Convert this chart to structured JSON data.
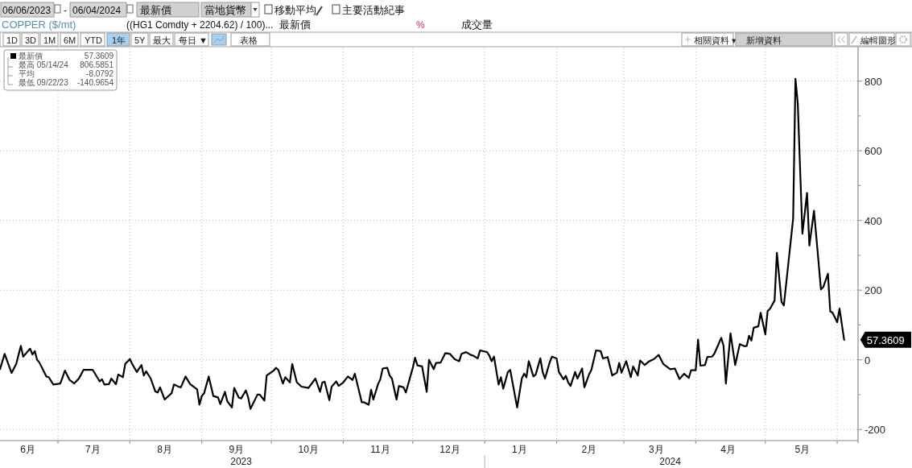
{
  "chart_data": {
    "type": "line",
    "title": "COPPER ($/mt)",
    "subtitle": "((HG1 Comdty + 2204.62) / 100)...",
    "x": [
      "2023-06-06",
      "2023-06-08",
      "2023-06-11",
      "2023-06-13",
      "2023-06-15",
      "2023-06-16",
      "2023-06-19",
      "2023-06-20",
      "2023-06-21",
      "2023-06-22",
      "2023-06-23",
      "2023-06-26",
      "2023-06-27",
      "2023-06-29",
      "2023-07-02",
      "2023-07-04",
      "2023-07-06",
      "2023-07-08",
      "2023-07-10",
      "2023-07-12",
      "2023-07-16",
      "2023-07-19",
      "2023-07-20",
      "2023-07-21",
      "2023-07-23",
      "2023-07-24",
      "2023-07-26",
      "2023-07-27",
      "2023-07-29",
      "2023-07-30",
      "2023-08-01",
      "2023-08-02",
      "2023-08-04",
      "2023-08-06",
      "2023-08-07",
      "2023-08-08",
      "2023-08-10",
      "2023-08-12",
      "2023-08-13",
      "2023-08-14",
      "2023-08-16",
      "2023-08-19",
      "2023-08-20",
      "2023-08-22",
      "2023-08-23",
      "2023-08-25",
      "2023-08-27",
      "2023-08-30",
      "2023-08-31",
      "2023-09-01",
      "2023-09-02",
      "2023-09-04",
      "2023-09-06",
      "2023-09-08",
      "2023-09-09",
      "2023-09-11",
      "2023-09-12",
      "2023-09-14",
      "2023-09-15",
      "2023-09-17",
      "2023-09-18",
      "2023-09-20",
      "2023-09-21",
      "2023-09-22",
      "2023-09-25",
      "2023-09-26",
      "2023-09-28",
      "2023-09-29",
      "2023-10-02",
      "2023-10-03",
      "2023-10-04",
      "2023-10-06",
      "2023-10-07",
      "2023-10-09",
      "2023-10-10",
      "2023-10-12",
      "2023-10-14",
      "2023-10-17",
      "2023-10-20",
      "2023-10-22",
      "2023-10-23",
      "2023-10-24",
      "2023-10-26",
      "2023-10-27",
      "2023-10-29",
      "2023-10-30",
      "2023-11-01",
      "2023-11-03",
      "2023-11-05",
      "2023-11-06",
      "2023-11-09",
      "2023-11-10",
      "2023-11-12",
      "2023-11-13",
      "2023-11-14",
      "2023-11-16",
      "2023-11-17",
      "2023-11-18",
      "2023-11-20",
      "2023-11-21",
      "2023-11-22",
      "2023-11-24",
      "2023-11-25",
      "2023-11-27",
      "2023-11-28",
      "2023-11-29",
      "2023-12-01",
      "2023-12-02",
      "2023-12-03",
      "2023-12-05",
      "2023-12-07",
      "2023-12-08",
      "2023-12-10",
      "2023-12-11",
      "2023-12-13",
      "2023-12-15",
      "2023-12-17",
      "2023-12-19",
      "2023-12-21",
      "2023-12-22",
      "2023-12-24",
      "2023-12-26",
      "2023-12-27",
      "2023-12-29",
      "2023-12-30",
      "2024-01-02",
      "2024-01-03",
      "2024-01-04",
      "2024-01-05",
      "2024-01-07",
      "2024-01-08",
      "2024-01-09",
      "2024-01-11",
      "2024-01-12",
      "2024-01-15",
      "2024-01-17",
      "2024-01-18",
      "2024-01-19",
      "2024-01-20",
      "2024-01-22",
      "2024-01-23",
      "2024-01-25",
      "2024-01-26",
      "2024-01-27",
      "2024-01-29",
      "2024-01-30",
      "2024-02-01",
      "2024-02-02",
      "2024-02-04",
      "2024-02-05",
      "2024-02-06",
      "2024-02-07",
      "2024-02-09",
      "2024-02-10",
      "2024-02-12",
      "2024-02-13",
      "2024-02-15",
      "2024-02-16",
      "2024-02-18",
      "2024-02-20",
      "2024-02-21",
      "2024-02-23",
      "2024-02-25",
      "2024-02-27",
      "2024-02-28",
      "2024-02-29",
      "2024-03-02",
      "2024-03-04",
      "2024-03-05",
      "2024-03-07",
      "2024-03-08",
      "2024-03-10",
      "2024-03-12",
      "2024-03-14",
      "2024-03-16",
      "2024-03-18",
      "2024-03-21",
      "2024-03-23",
      "2024-03-25",
      "2024-03-27",
      "2024-03-29",
      "2024-03-30",
      "2024-04-01",
      "2024-04-02",
      "2024-04-03",
      "2024-04-05",
      "2024-04-06",
      "2024-04-08",
      "2024-04-09",
      "2024-04-10",
      "2024-04-12",
      "2024-04-13",
      "2024-04-14",
      "2024-04-16",
      "2024-04-18",
      "2024-04-20",
      "2024-04-22",
      "2024-04-23",
      "2024-04-24",
      "2024-04-25",
      "2024-04-26",
      "2024-04-28",
      "2024-04-29",
      "2024-05-01",
      "2024-05-02",
      "2024-05-03",
      "2024-05-05",
      "2024-05-06",
      "2024-05-08",
      "2024-05-09",
      "2024-05-13",
      "2024-05-14",
      "2024-05-15",
      "2024-05-17",
      "2024-05-19",
      "2024-05-20",
      "2024-05-22",
      "2024-05-25",
      "2024-05-26",
      "2024-05-28",
      "2024-05-29",
      "2024-05-30",
      "2024-06-01",
      "2024-06-02",
      "2024-06-04"
    ],
    "series": [
      {
        "name": "最新價",
        "color": "#000000",
        "values": [
          -27,
          17,
          -38,
          -12,
          40,
          9,
          32,
          15,
          25,
          0,
          -8,
          -48,
          -50,
          -71,
          -68,
          -31,
          -58,
          -68,
          -54,
          -29,
          -29,
          -62,
          -56,
          -71,
          -70,
          -54,
          -70,
          -42,
          -50,
          -12,
          2,
          -12,
          -35,
          -15,
          -45,
          -33,
          -54,
          -91,
          -94,
          -79,
          -114,
          -96,
          -71,
          -77,
          -79,
          -48,
          -70,
          -85,
          -129,
          -104,
          -96,
          -48,
          -104,
          -108,
          -127,
          -92,
          -119,
          -137,
          -81,
          -109,
          -111,
          -88,
          -108,
          -140.9654,
          -100,
          -100,
          -117,
          -45,
          -31,
          -23,
          -29,
          -68,
          -50,
          -65,
          -12,
          -65,
          -77,
          -81,
          -54,
          -92,
          -65,
          -63,
          -116,
          -77,
          -62,
          -75,
          -65,
          -48,
          -58,
          -40,
          -122,
          -122,
          -129,
          -86,
          -114,
          -70,
          -56,
          -25,
          -23,
          -45,
          -54,
          -114,
          -75,
          -79,
          -94,
          -70,
          -23,
          6,
          -16,
          -19,
          -92,
          0,
          -27,
          -9,
          -8,
          19,
          17,
          2,
          -4,
          17,
          22,
          14,
          12,
          4,
          27,
          22,
          12,
          -4,
          9,
          -71,
          -50,
          -83,
          -35,
          -29,
          -137,
          -54,
          -40,
          -50,
          -4,
          -48,
          -42,
          4,
          -35,
          -54,
          -8,
          9,
          4,
          -35,
          -56,
          -46,
          -65,
          -75,
          -35,
          -54,
          -25,
          -79,
          -42,
          -29,
          27,
          25,
          4,
          8,
          -45,
          -37,
          -9,
          -37,
          -4,
          -50,
          -19,
          -45,
          -2,
          -15,
          -4,
          2,
          14,
          -12,
          -27,
          -25,
          -55,
          -40,
          -52,
          -30,
          -30,
          58,
          -17,
          -15,
          8,
          9,
          17,
          32,
          63,
          40,
          -68,
          76,
          -15,
          45,
          39,
          40,
          69,
          55,
          92,
          96,
          135,
          73,
          140,
          146,
          170,
          307,
          166,
          156,
          405,
          806.5851,
          736,
          362,
          479,
          328,
          428,
          202,
          209,
          247,
          139,
          135,
          108,
          147,
          57.3609
        ]
      }
    ],
    "xlim": [
      "2023-06-06",
      "2024-06-10"
    ],
    "xticks": [
      {
        "value": "2023-06-18",
        "label": "6月"
      },
      {
        "value": "2023-07-01",
        "label": null
      },
      {
        "value": "2023-07-16",
        "label": "7月"
      },
      {
        "value": "2023-08-01",
        "label": null
      },
      {
        "value": "2023-08-16",
        "label": "8月"
      },
      {
        "value": "2023-09-01",
        "label": null
      },
      {
        "value": "2023-09-16",
        "label": "9月"
      },
      {
        "value": "2023-10-01",
        "label": null
      },
      {
        "value": "2023-10-17",
        "label": "10月"
      },
      {
        "value": "2023-11-01",
        "label": null
      },
      {
        "value": "2023-11-17",
        "label": "11月"
      },
      {
        "value": "2023-12-01",
        "label": null
      },
      {
        "value": "2023-12-17",
        "label": "12月"
      },
      {
        "value": "2024-01-01",
        "label": null
      },
      {
        "value": "2024-01-16",
        "label": "1月"
      },
      {
        "value": "2024-02-01",
        "label": null
      },
      {
        "value": "2024-02-15",
        "label": "2月"
      },
      {
        "value": "2024-03-01",
        "label": null
      },
      {
        "value": "2024-03-15",
        "label": "3月"
      },
      {
        "value": "2024-04-01",
        "label": null
      },
      {
        "value": "2024-04-15",
        "label": "4月"
      },
      {
        "value": "2024-05-01",
        "label": null
      },
      {
        "value": "2024-05-17",
        "label": "5月"
      },
      {
        "value": "2024-06-01",
        "label": null
      }
    ],
    "x2lim": [
      "2023-06-06",
      "2024-06-10"
    ],
    "x2ticks": [
      {
        "value": "2023-09-18",
        "label": "2023"
      },
      {
        "value": "2024-01-01",
        "label": null
      },
      {
        "value": "2024-03-21",
        "label": "2024"
      }
    ],
    "ylim": [
      -232,
      894
    ],
    "yticks": [
      -200,
      {
        "value": -100,
        "label": null
      },
      0,
      {
        "value": 100,
        "label": null
      },
      200,
      {
        "value": 300,
        "label": null
      },
      400,
      {
        "value": 500,
        "label": null
      },
      600,
      {
        "value": 700,
        "label": null
      },
      800
    ],
    "grid": true,
    "legend": "top left",
    "annotations": [
      "06/06/2023",
      "-",
      "06/04/2024",
      "最新價",
      "當地貨幣",
      "移動平均",
      "主要活動紀事",
      "%",
      "成交量",
      "1D",
      "3D",
      "1M",
      "6M",
      "YTD",
      "1年",
      "5Y",
      "最大",
      "每日 ▼",
      "表格",
      "相關資料 ▾",
      "新增資料",
      "編輯圖形",
      "57.3609",
      "最高 05/14/24",
      "806.5851",
      "平均",
      "-8.0792",
      "最低 09/22/23",
      "-140.9654",
      {
        "text": "57.3609",
        "x": "2024-06-04",
        "y": 57.3609
      }
    ]
  }
}
